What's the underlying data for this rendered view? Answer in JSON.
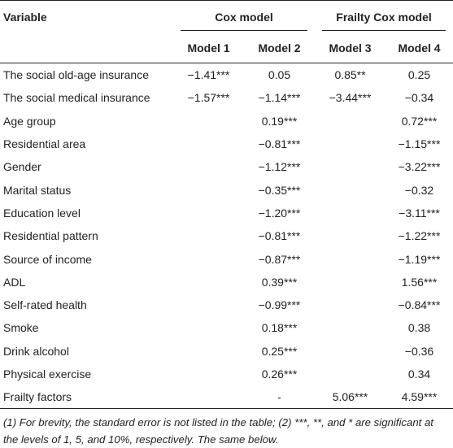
{
  "header": {
    "variable": "Variable",
    "cox_group": "Cox model",
    "frailty_group": "Frailty Cox model",
    "models": [
      "Model 1",
      "Model 2",
      "Model 3",
      "Model 4"
    ]
  },
  "rows": [
    {
      "label": "The social old-age insurance",
      "values": [
        "−1.41***",
        "0.05",
        "0.85**",
        "0.25"
      ]
    },
    {
      "label": "The social medical insurance",
      "values": [
        "−1.57***",
        "−1.14***",
        "−3.44***",
        "−0.34"
      ]
    },
    {
      "label": "Age group",
      "values": [
        "",
        "0.19***",
        "",
        "0.72***"
      ]
    },
    {
      "label": "Residential area",
      "values": [
        "",
        "−0.81***",
        "",
        "−1.15***"
      ]
    },
    {
      "label": "Gender",
      "values": [
        "",
        "−1.12***",
        "",
        "−3.22***"
      ]
    },
    {
      "label": "Marital status",
      "values": [
        "",
        "−0.35***",
        "",
        "−0.32"
      ]
    },
    {
      "label": "Education level",
      "values": [
        "",
        "−1.20***",
        "",
        "−3.11***"
      ]
    },
    {
      "label": "Residential pattern",
      "values": [
        "",
        "−0.81***",
        "",
        "−1.22***"
      ]
    },
    {
      "label": "Source of income",
      "values": [
        "",
        "−0.87***",
        "",
        "−1.19***"
      ]
    },
    {
      "label": "ADL",
      "values": [
        "",
        "0.39***",
        "",
        "1.56***"
      ]
    },
    {
      "label": "Self-rated health",
      "values": [
        "",
        "−0.99***",
        "",
        "−0.84***"
      ]
    },
    {
      "label": "Smoke",
      "values": [
        "",
        "0.18***",
        "",
        "0.38"
      ]
    },
    {
      "label": "Drink alcohol",
      "values": [
        "",
        "0.25***",
        "",
        "−0.36"
      ]
    },
    {
      "label": "Physical exercise",
      "values": [
        "",
        "0.26***",
        "",
        "0.34"
      ]
    },
    {
      "label": "Frailty factors",
      "values": [
        "",
        "-",
        "5.06***",
        "4.59***"
      ]
    }
  ],
  "note": "(1) For brevity, the standard error is not listed in the table; (2) ***, **, and * are significant at the levels of 1, 5, and 10%, respectively. The same below."
}
